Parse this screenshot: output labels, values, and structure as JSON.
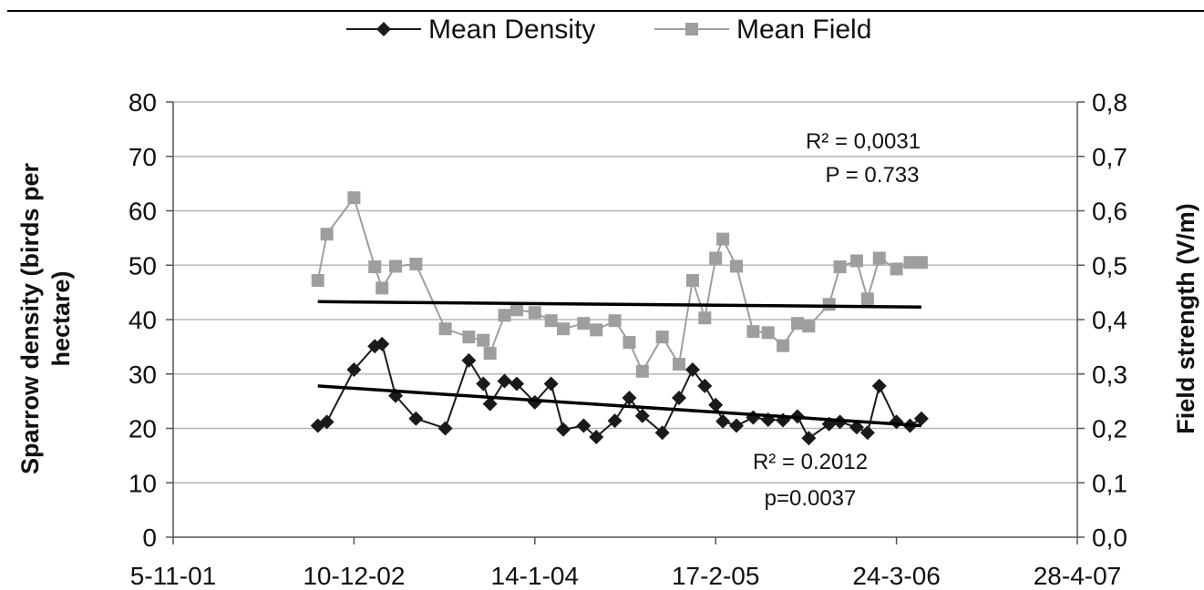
{
  "chart_data": {
    "type": "line",
    "legend": {
      "placement": "top",
      "entries": [
        "Mean Density",
        "Mean Field"
      ]
    },
    "y_left": {
      "label_line1": "Sparrow density (birds per",
      "label_line2": "hectare)",
      "range": [
        0,
        80
      ],
      "ticks": [
        "0",
        "10",
        "20",
        "30",
        "40",
        "50",
        "60",
        "70",
        "80"
      ]
    },
    "y_right": {
      "label": "Field strength (V/m)",
      "range": [
        0,
        0.8
      ],
      "ticks": [
        "0,0",
        "0,1",
        "0,2",
        "0,3",
        "0,4",
        "0,5",
        "0,6",
        "0,7",
        "0,8"
      ]
    },
    "x_axis": {
      "ticks": [
        "5-11-01",
        "10-12-02",
        "14-1-04",
        "17-2-05",
        "24-3-06",
        "28-4-07"
      ],
      "tick_dates": [
        "2001-11-05",
        "2002-12-10",
        "2004-01-14",
        "2005-02-17",
        "2006-03-24",
        "2007-04-28"
      ]
    },
    "grid": true,
    "series": [
      {
        "name": "Mean Density",
        "axis": "left",
        "color": "#1a1a1a",
        "marker": "diamond",
        "points": [
          [
            "2002-09-21",
            20.5
          ],
          [
            "2002-10-11",
            21.2
          ],
          [
            "2002-12-10",
            30.8
          ],
          [
            "2003-01-25",
            35.1
          ],
          [
            "2003-02-10",
            35.5
          ],
          [
            "2003-03-12",
            26.0
          ],
          [
            "2003-04-26",
            21.8
          ],
          [
            "2003-06-30",
            20.0
          ],
          [
            "2003-08-21",
            32.5
          ],
          [
            "2003-09-22",
            28.2
          ],
          [
            "2003-10-07",
            24.5
          ],
          [
            "2003-11-08",
            28.7
          ],
          [
            "2003-12-05",
            28.2
          ],
          [
            "2004-01-14",
            24.8
          ],
          [
            "2004-02-19",
            28.2
          ],
          [
            "2004-03-17",
            19.8
          ],
          [
            "2004-05-01",
            20.5
          ],
          [
            "2004-05-29",
            18.4
          ],
          [
            "2004-07-09",
            21.4
          ],
          [
            "2004-08-10",
            25.6
          ],
          [
            "2004-09-08",
            22.3
          ],
          [
            "2004-10-22",
            19.2
          ],
          [
            "2004-11-28",
            25.6
          ],
          [
            "2004-12-28",
            30.8
          ],
          [
            "2005-01-24",
            27.8
          ],
          [
            "2005-02-17",
            24.3
          ],
          [
            "2005-03-05",
            21.3
          ],
          [
            "2005-04-04",
            20.5
          ],
          [
            "2005-05-11",
            22.0
          ],
          [
            "2005-06-13",
            21.6
          ],
          [
            "2005-07-16",
            21.5
          ],
          [
            "2005-08-17",
            22.2
          ],
          [
            "2005-09-11",
            18.2
          ],
          [
            "2005-10-26",
            20.8
          ],
          [
            "2005-11-19",
            21.2
          ],
          [
            "2005-12-26",
            20.2
          ],
          [
            "2006-01-19",
            19.2
          ],
          [
            "2006-02-14",
            27.8
          ],
          [
            "2006-03-24",
            21.2
          ],
          [
            "2006-04-23",
            20.5
          ],
          [
            "2006-05-18",
            21.8
          ]
        ],
        "trend": {
          "start": [
            "2002-09-21",
            27.8
          ],
          "end": [
            "2006-05-18",
            20.5
          ],
          "r2_label": "R² = 0.2012",
          "p_label": "p=0.0037"
        }
      },
      {
        "name": "Mean Field",
        "axis": "right",
        "color": "#9e9e9e",
        "marker": "square",
        "points": [
          [
            "2002-09-21",
            0.472
          ],
          [
            "2002-10-11",
            0.557
          ],
          [
            "2002-12-10",
            0.624
          ],
          [
            "2003-01-25",
            0.497
          ],
          [
            "2003-02-10",
            0.458
          ],
          [
            "2003-03-12",
            0.498
          ],
          [
            "2003-04-26",
            0.502
          ],
          [
            "2003-06-30",
            0.383
          ],
          [
            "2003-08-21",
            0.368
          ],
          [
            "2003-09-22",
            0.362
          ],
          [
            "2003-10-07",
            0.338
          ],
          [
            "2003-11-08",
            0.408
          ],
          [
            "2003-12-05",
            0.418
          ],
          [
            "2004-01-14",
            0.413
          ],
          [
            "2004-02-19",
            0.398
          ],
          [
            "2004-03-17",
            0.383
          ],
          [
            "2004-05-01",
            0.393
          ],
          [
            "2004-05-29",
            0.381
          ],
          [
            "2004-07-09",
            0.398
          ],
          [
            "2004-08-10",
            0.358
          ],
          [
            "2004-09-08",
            0.305
          ],
          [
            "2004-10-22",
            0.368
          ],
          [
            "2004-11-28",
            0.318
          ],
          [
            "2004-12-28",
            0.472
          ],
          [
            "2005-01-24",
            0.403
          ],
          [
            "2005-02-17",
            0.513
          ],
          [
            "2005-03-05",
            0.548
          ],
          [
            "2005-04-04",
            0.498
          ],
          [
            "2005-05-11",
            0.378
          ],
          [
            "2005-06-13",
            0.376
          ],
          [
            "2005-07-16",
            0.352
          ],
          [
            "2005-08-17",
            0.393
          ],
          [
            "2005-09-11",
            0.388
          ],
          [
            "2005-10-26",
            0.428
          ],
          [
            "2005-11-19",
            0.497
          ],
          [
            "2005-12-26",
            0.508
          ],
          [
            "2006-01-19",
            0.438
          ],
          [
            "2006-02-14",
            0.513
          ],
          [
            "2006-03-24",
            0.493
          ],
          [
            "2006-04-23",
            0.505
          ],
          [
            "2006-05-18",
            0.505
          ]
        ],
        "trend": {
          "start": [
            "2002-09-21",
            0.433
          ],
          "end": [
            "2006-05-18",
            0.423
          ],
          "r2_label": "R² = 0,0031",
          "p_label": "P = 0.733"
        }
      }
    ]
  }
}
